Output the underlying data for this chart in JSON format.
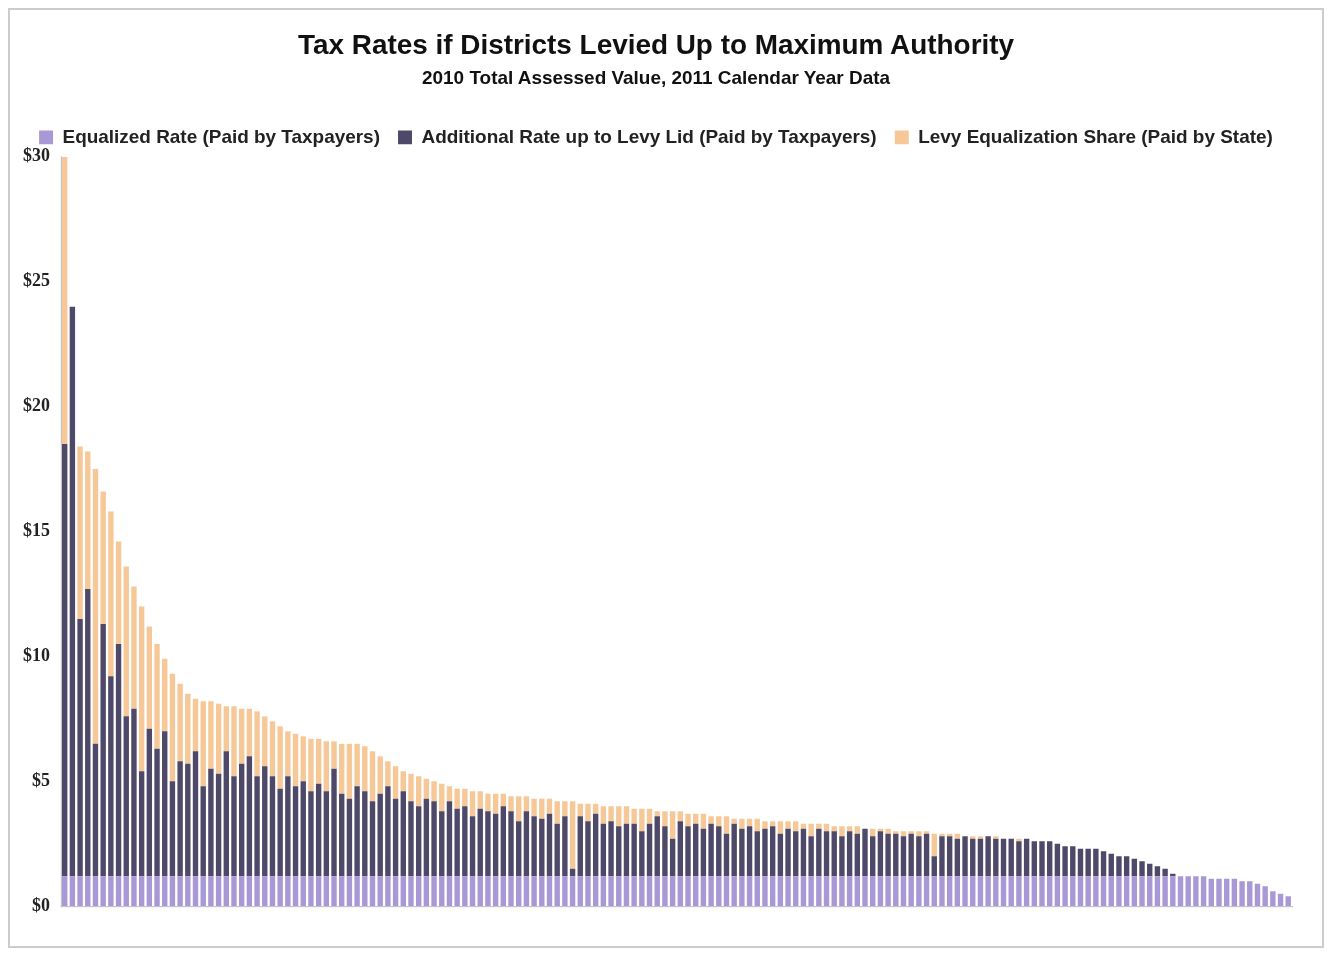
{
  "chart_data": {
    "type": "bar",
    "title": "Tax Rates if Districts Levied Up to Maximum Authority",
    "subtitle": "2010 Total Assessed Value, 2011 Calendar Year Data",
    "categories": [
      null,
      null,
      null,
      null,
      null,
      null,
      null,
      null,
      null,
      null,
      null,
      null,
      null,
      null,
      null,
      null,
      null,
      null,
      null,
      null,
      null,
      null,
      null,
      null,
      null,
      null,
      null,
      null,
      null,
      null,
      null,
      null,
      null,
      null,
      null,
      null,
      null,
      null,
      null,
      null,
      null,
      null,
      null,
      null,
      null,
      null,
      null,
      null,
      null,
      null,
      null,
      null,
      null,
      null,
      null,
      null,
      null,
      null,
      null,
      null,
      null,
      null,
      null,
      null,
      null,
      null,
      null,
      null,
      null,
      null,
      null,
      null,
      null,
      null,
      null,
      null,
      null,
      null,
      null,
      null,
      null,
      null,
      null,
      null,
      null,
      null,
      null,
      null,
      null,
      null,
      null,
      null,
      null,
      null,
      null,
      null,
      null,
      null,
      null,
      null,
      null,
      null,
      null,
      null,
      null,
      null,
      null,
      null,
      null,
      null,
      null,
      null,
      null,
      null,
      null,
      null,
      null,
      null,
      null,
      null,
      null,
      null,
      null,
      null,
      null,
      null,
      null,
      null,
      null,
      null,
      null,
      null,
      null,
      null,
      null,
      null,
      null,
      null,
      null,
      null,
      null,
      null,
      null,
      null,
      null,
      null,
      null,
      null,
      null,
      null,
      null,
      null,
      null,
      null,
      null,
      null,
      null,
      null,
      null,
      null
    ],
    "stacked": true,
    "tick_labels": "y",
    "grid": false,
    "legend": "top",
    "ylim": [
      0,
      30
    ],
    "yticks": [
      {
        "value": 0,
        "label": "$0"
      },
      {
        "value": 5,
        "label": "$5"
      },
      {
        "value": 10,
        "label": "$10"
      },
      {
        "value": 15,
        "label": "$15"
      },
      {
        "value": 20,
        "label": "$20"
      },
      {
        "value": 25,
        "label": "$25"
      },
      {
        "value": 30,
        "label": "$30"
      }
    ],
    "series": [
      {
        "name": "Equalized Rate (Paid by Taxpayers)",
        "color": "#a898d6",
        "values": [
          1.2,
          1.2,
          1.2,
          1.2,
          1.2,
          1.2,
          1.2,
          1.2,
          1.2,
          1.2,
          1.2,
          1.2,
          1.2,
          1.2,
          1.2,
          1.2,
          1.2,
          1.2,
          1.2,
          1.2,
          1.2,
          1.2,
          1.2,
          1.2,
          1.2,
          1.2,
          1.2,
          1.2,
          1.2,
          1.2,
          1.2,
          1.2,
          1.2,
          1.2,
          1.2,
          1.2,
          1.2,
          1.2,
          1.2,
          1.2,
          1.2,
          1.2,
          1.2,
          1.2,
          1.2,
          1.2,
          1.2,
          1.2,
          1.2,
          1.2,
          1.2,
          1.2,
          1.2,
          1.2,
          1.2,
          1.2,
          1.2,
          1.2,
          1.2,
          1.2,
          1.2,
          1.2,
          1.2,
          1.2,
          1.2,
          1.2,
          1.2,
          1.2,
          1.2,
          1.2,
          1.2,
          1.2,
          1.2,
          1.2,
          1.2,
          1.2,
          1.2,
          1.2,
          1.2,
          1.2,
          1.2,
          1.2,
          1.2,
          1.2,
          1.2,
          1.2,
          1.2,
          1.2,
          1.2,
          1.2,
          1.2,
          1.2,
          1.2,
          1.2,
          1.2,
          1.2,
          1.2,
          1.2,
          1.2,
          1.2,
          1.2,
          1.2,
          1.2,
          1.2,
          1.2,
          1.2,
          1.2,
          1.2,
          1.2,
          1.2,
          1.2,
          1.2,
          1.2,
          1.2,
          1.2,
          1.2,
          1.2,
          1.2,
          1.2,
          1.2,
          1.2,
          1.2,
          1.2,
          1.2,
          1.2,
          1.2,
          1.2,
          1.2,
          1.2,
          1.2,
          1.2,
          1.2,
          1.2,
          1.2,
          1.2,
          1.2,
          1.2,
          1.2,
          1.2,
          1.2,
          1.2,
          1.2,
          1.2,
          1.2,
          1.2,
          1.2,
          1.2,
          1.2,
          1.2,
          1.1,
          1.1,
          1.1,
          1.1,
          1.0,
          1.0,
          0.9,
          0.8,
          0.6,
          0.5,
          0.4
        ]
      },
      {
        "name": "Additional Rate up to Levy Lid (Paid by Taxpayers)",
        "color": "#4e4968",
        "values": [
          17.3,
          22.8,
          10.3,
          11.5,
          5.3,
          10.1,
          8.0,
          9.3,
          6.4,
          6.7,
          4.2,
          5.9,
          5.1,
          5.8,
          3.8,
          4.6,
          4.5,
          5.0,
          3.6,
          4.3,
          4.1,
          5.0,
          4.0,
          4.5,
          4.8,
          4.0,
          4.4,
          4.0,
          3.5,
          4.0,
          3.6,
          3.8,
          3.4,
          3.7,
          3.4,
          4.3,
          3.3,
          3.1,
          3.6,
          3.4,
          3.0,
          3.3,
          3.6,
          3.1,
          3.4,
          3.0,
          2.8,
          3.1,
          3.0,
          2.6,
          3.0,
          2.7,
          2.8,
          2.4,
          2.7,
          2.6,
          2.5,
          2.8,
          2.6,
          2.2,
          2.6,
          2.4,
          2.3,
          2.5,
          2.1,
          2.4,
          0.3,
          2.4,
          2.2,
          2.5,
          2.1,
          2.2,
          2.0,
          2.1,
          2.1,
          1.8,
          2.1,
          2.4,
          2.0,
          1.5,
          2.2,
          2.0,
          2.1,
          1.9,
          2.1,
          2.0,
          1.7,
          2.1,
          1.9,
          2.0,
          1.8,
          1.9,
          2.0,
          1.7,
          1.9,
          1.8,
          1.9,
          1.6,
          1.9,
          1.8,
          1.8,
          1.6,
          1.8,
          1.7,
          1.9,
          1.6,
          1.8,
          1.7,
          1.7,
          1.6,
          1.7,
          1.6,
          1.7,
          0.8,
          1.6,
          1.6,
          1.5,
          1.6,
          1.5,
          1.5,
          1.6,
          1.5,
          1.5,
          1.5,
          1.4,
          1.5,
          1.4,
          1.4,
          1.4,
          1.3,
          1.2,
          1.2,
          1.1,
          1.1,
          1.1,
          1.0,
          0.9,
          0.8,
          0.8,
          0.7,
          0.6,
          0.5,
          0.4,
          0.3,
          0.1,
          0,
          0,
          0,
          0,
          0,
          0,
          0,
          0,
          0,
          0,
          0,
          0,
          0,
          0,
          0
        ]
      },
      {
        "name": "Levy Equalization Share (Paid by State)",
        "color": "#f6c898",
        "values": [
          11.5,
          0,
          6.9,
          5.5,
          11.0,
          5.3,
          6.6,
          4.1,
          6.0,
          4.9,
          6.6,
          4.1,
          4.2,
          2.9,
          4.3,
          3.1,
          2.8,
          2.1,
          3.4,
          2.7,
          2.8,
          1.8,
          2.8,
          2.2,
          1.9,
          2.6,
          2.0,
          2.2,
          2.5,
          1.8,
          2.1,
          1.8,
          2.1,
          1.8,
          2.0,
          1.1,
          2.0,
          2.2,
          1.7,
          1.8,
          2.0,
          1.5,
          1.0,
          1.3,
          0.8,
          1.1,
          1.2,
          0.8,
          0.8,
          1.1,
          0.6,
          0.8,
          0.7,
          1.0,
          0.7,
          0.7,
          0.8,
          0.5,
          0.6,
          1.0,
          0.6,
          0.7,
          0.8,
          0.6,
          0.9,
          0.6,
          2.7,
          0.5,
          0.7,
          0.4,
          0.7,
          0.6,
          0.8,
          0.7,
          0.6,
          0.9,
          0.6,
          0.2,
          0.6,
          1.1,
          0.4,
          0.5,
          0.4,
          0.6,
          0.3,
          0.4,
          0.7,
          0.2,
          0.4,
          0.3,
          0.5,
          0.3,
          0.2,
          0.5,
          0.3,
          0.4,
          0.2,
          0.5,
          0.2,
          0.3,
          0.2,
          0.4,
          0.2,
          0.3,
          0,
          0.3,
          0.1,
          0.2,
          0.1,
          0.2,
          0.1,
          0.2,
          0.1,
          0.9,
          0.1,
          0.1,
          0.2,
          0,
          0.1,
          0.1,
          0,
          0.1,
          0,
          0,
          0.1,
          0,
          0,
          0,
          0,
          0,
          0,
          0,
          0,
          0,
          0,
          0,
          0,
          0,
          0,
          0,
          0,
          0,
          0,
          0,
          0,
          0,
          0,
          0,
          0,
          0,
          0,
          0,
          0,
          0,
          0,
          0,
          0,
          0,
          0,
          0
        ]
      }
    ]
  }
}
